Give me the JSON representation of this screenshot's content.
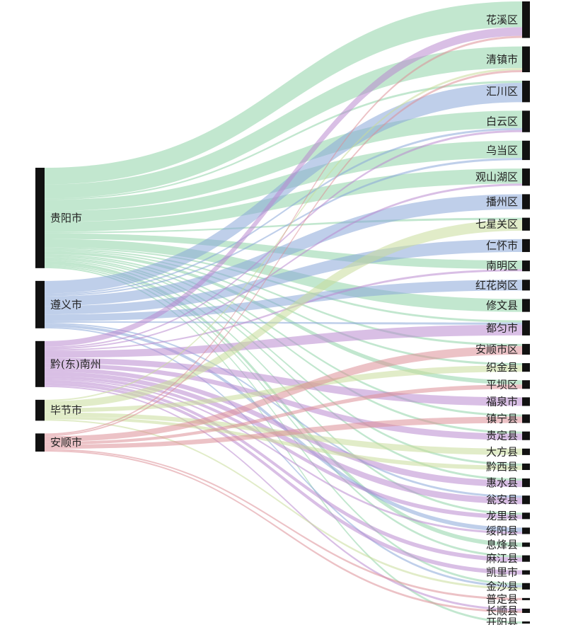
{
  "diagram": {
    "type": "sankey",
    "colors": {
      "贵阳市": "#8fd3a7",
      "遵义市": "#8aa8d8",
      "黔(东)南州": "#b98bd0",
      "毕节市": "#c9dc9a",
      "安顺市": "#dc8f98",
      "node": "#111111"
    },
    "sources": [
      {
        "id": "gy",
        "label": "贵阳市",
        "color": "#8fd3a7"
      },
      {
        "id": "zy",
        "label": "遵义市",
        "color": "#8aa8d8"
      },
      {
        "id": "qdn",
        "label": "黔(东)南州",
        "color": "#b98bd0"
      },
      {
        "id": "bj",
        "label": "毕节市",
        "color": "#c9dc9a"
      },
      {
        "id": "as",
        "label": "安顺市",
        "color": "#dc8f98"
      }
    ],
    "targets": [
      {
        "id": "t0",
        "label": "花溪区"
      },
      {
        "id": "t1",
        "label": "清镇市"
      },
      {
        "id": "t2",
        "label": "汇川区"
      },
      {
        "id": "t3",
        "label": "白云区"
      },
      {
        "id": "t4",
        "label": "乌当区"
      },
      {
        "id": "t5",
        "label": "观山湖区"
      },
      {
        "id": "t6",
        "label": "播州区"
      },
      {
        "id": "t7",
        "label": "七星关区"
      },
      {
        "id": "t8",
        "label": "仁怀市"
      },
      {
        "id": "t9",
        "label": "南明区"
      },
      {
        "id": "t10",
        "label": "红花岗区"
      },
      {
        "id": "t11",
        "label": "修文县"
      },
      {
        "id": "t12",
        "label": "都匀市"
      },
      {
        "id": "t13",
        "label": "安顺市区"
      },
      {
        "id": "t14",
        "label": "织金县"
      },
      {
        "id": "t15",
        "label": "平坝区"
      },
      {
        "id": "t16",
        "label": "福泉市"
      },
      {
        "id": "t17",
        "label": "镇宁县"
      },
      {
        "id": "t18",
        "label": "贵定县"
      },
      {
        "id": "t19",
        "label": "大方县"
      },
      {
        "id": "t20",
        "label": "黔西县"
      },
      {
        "id": "t21",
        "label": "惠水县"
      },
      {
        "id": "t22",
        "label": "瓮安县"
      },
      {
        "id": "t23",
        "label": "龙里县"
      },
      {
        "id": "t24",
        "label": "绥阳县"
      },
      {
        "id": "t25",
        "label": "息烽县"
      },
      {
        "id": "t26",
        "label": "麻江县"
      },
      {
        "id": "t27",
        "label": "凯里市"
      },
      {
        "id": "t28",
        "label": "金沙县"
      },
      {
        "id": "t29",
        "label": "普定县"
      },
      {
        "id": "t30",
        "label": "长顺县"
      },
      {
        "id": "t31",
        "label": "开阳县"
      }
    ],
    "links": [
      {
        "s": "gy",
        "t": "t0",
        "v": 12
      },
      {
        "s": "gy",
        "t": "t1",
        "v": 10
      },
      {
        "s": "gy",
        "t": "t3",
        "v": 8
      },
      {
        "s": "gy",
        "t": "t4",
        "v": 8
      },
      {
        "s": "gy",
        "t": "t5",
        "v": 7
      },
      {
        "s": "gy",
        "t": "t9",
        "v": 4
      },
      {
        "s": "gy",
        "t": "t11",
        "v": 6
      },
      {
        "s": "gy",
        "t": "t25",
        "v": 2
      },
      {
        "s": "gy",
        "t": "t31",
        "v": 1
      },
      {
        "s": "gy",
        "t": "t2",
        "v": 1
      },
      {
        "s": "gy",
        "t": "t12",
        "v": 1
      },
      {
        "s": "gy",
        "t": "t14",
        "v": 1
      },
      {
        "s": "gy",
        "t": "t15",
        "v": 2
      },
      {
        "s": "gy",
        "t": "t18",
        "v": 1
      },
      {
        "s": "gy",
        "t": "t21",
        "v": 1
      },
      {
        "s": "gy",
        "t": "t23",
        "v": 1
      },
      {
        "s": "gy",
        "t": "t7",
        "v": 1
      },
      {
        "s": "gy",
        "t": "t13",
        "v": 1
      },
      {
        "s": "gy",
        "t": "t20",
        "v": 1
      },
      {
        "s": "gy",
        "t": "t17",
        "v": 1
      },
      {
        "s": "gy",
        "t": "t26",
        "v": 1
      },
      {
        "s": "gy",
        "t": "t28",
        "v": 1
      },
      {
        "s": "zy",
        "t": "t2",
        "v": 9
      },
      {
        "s": "zy",
        "t": "t6",
        "v": 7
      },
      {
        "s": "zy",
        "t": "t8",
        "v": 6
      },
      {
        "s": "zy",
        "t": "t10",
        "v": 5
      },
      {
        "s": "zy",
        "t": "t24",
        "v": 2
      },
      {
        "s": "zy",
        "t": "t3",
        "v": 1
      },
      {
        "s": "zy",
        "t": "t4",
        "v": 1
      },
      {
        "s": "zy",
        "t": "t28",
        "v": 1
      },
      {
        "s": "zy",
        "t": "t12",
        "v": 1
      },
      {
        "s": "zy",
        "t": "t22",
        "v": 1
      },
      {
        "s": "qdn",
        "t": "t0",
        "v": 4
      },
      {
        "s": "qdn",
        "t": "t12",
        "v": 5
      },
      {
        "s": "qdn",
        "t": "t16",
        "v": 4
      },
      {
        "s": "qdn",
        "t": "t18",
        "v": 3
      },
      {
        "s": "qdn",
        "t": "t21",
        "v": 3
      },
      {
        "s": "qdn",
        "t": "t22",
        "v": 3
      },
      {
        "s": "qdn",
        "t": "t23",
        "v": 2
      },
      {
        "s": "qdn",
        "t": "t26",
        "v": 2
      },
      {
        "s": "qdn",
        "t": "t27",
        "v": 2
      },
      {
        "s": "qdn",
        "t": "t9",
        "v": 1
      },
      {
        "s": "qdn",
        "t": "t3",
        "v": 1
      },
      {
        "s": "qdn",
        "t": "t5",
        "v": 1
      },
      {
        "s": "qdn",
        "t": "t30",
        "v": 1
      },
      {
        "s": "qdn",
        "t": "t24",
        "v": 1
      },
      {
        "s": "bj",
        "t": "t7",
        "v": 5
      },
      {
        "s": "bj",
        "t": "t14",
        "v": 3
      },
      {
        "s": "bj",
        "t": "t19",
        "v": 3
      },
      {
        "s": "bj",
        "t": "t20",
        "v": 2
      },
      {
        "s": "bj",
        "t": "t28",
        "v": 1
      },
      {
        "s": "bj",
        "t": "t1",
        "v": 1
      },
      {
        "s": "as",
        "t": "t13",
        "v": 4
      },
      {
        "s": "as",
        "t": "t15",
        "v": 2
      },
      {
        "s": "as",
        "t": "t17",
        "v": 3
      },
      {
        "s": "as",
        "t": "t29",
        "v": 1
      },
      {
        "s": "as",
        "t": "t1",
        "v": 1
      },
      {
        "s": "as",
        "t": "t0",
        "v": 1
      },
      {
        "s": "as",
        "t": "t30",
        "v": 1
      }
    ]
  }
}
